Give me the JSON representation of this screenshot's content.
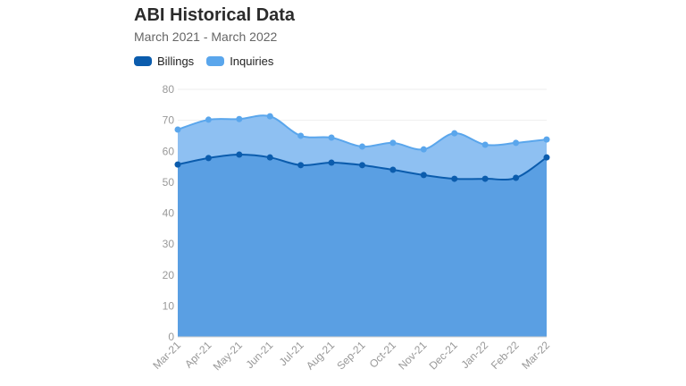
{
  "chart_data": {
    "type": "area",
    "title": "ABI Historical Data",
    "subtitle": "March 2021 - March 2022",
    "categories": [
      "Mar-21",
      "Apr-21",
      "May-21",
      "Jun-21",
      "Jul-21",
      "Aug-21",
      "Sep-21",
      "Oct-21",
      "Nov-21",
      "Dec-21",
      "Jan-22",
      "Feb-22",
      "Mar-22"
    ],
    "series": [
      {
        "name": "Billings",
        "color": "#0b5cad",
        "fill": "#5a9fe3",
        "values": [
          55.7,
          57.8,
          58.9,
          58.0,
          55.5,
          56.3,
          55.5,
          54.0,
          52.3,
          51.1,
          51.1,
          51.4,
          58.0
        ]
      },
      {
        "name": "Inquiries",
        "color": "#5aa6ec",
        "fill": "#8ec0f2",
        "values": [
          67.0,
          70.2,
          70.4,
          71.3,
          65.0,
          64.4,
          61.5,
          62.7,
          60.6,
          65.8,
          62.1,
          62.7,
          63.8
        ]
      }
    ],
    "ylim": [
      0,
      80
    ],
    "yticks": [
      "0",
      "10",
      "20",
      "30",
      "40",
      "50",
      "60",
      "70",
      "80"
    ],
    "grid": true,
    "legend": "top-left"
  }
}
